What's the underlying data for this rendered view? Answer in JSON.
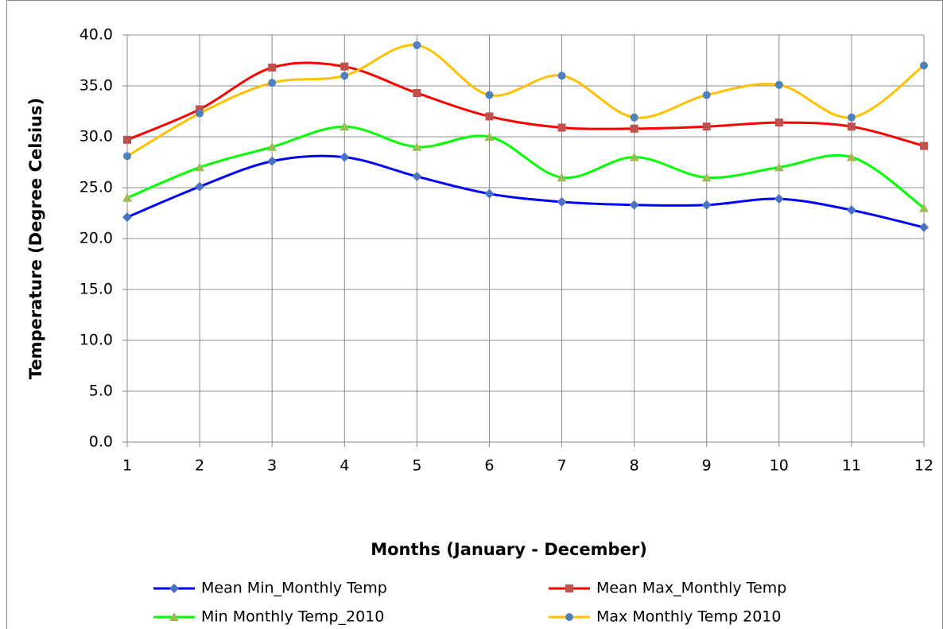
{
  "chart_data": {
    "type": "line",
    "smooth": true,
    "grid": true,
    "legend": "bottom",
    "x_label": "Months (January - December)",
    "y_label": "Temperature (Degree Celsius)",
    "x": [
      1,
      2,
      3,
      4,
      5,
      6,
      7,
      8,
      9,
      10,
      11,
      12
    ],
    "xlim": [
      1,
      12
    ],
    "xticks": [
      1,
      2,
      3,
      4,
      5,
      6,
      7,
      8,
      9,
      10,
      11,
      12
    ],
    "ylim": [
      0,
      40
    ],
    "yticks": [
      {
        "value": 0,
        "label": "0.0"
      },
      {
        "value": 5,
        "label": "5.0"
      },
      {
        "value": 10,
        "label": "10.0"
      },
      {
        "value": 15,
        "label": "15.0"
      },
      {
        "value": 20,
        "label": "20.0"
      },
      {
        "value": 25,
        "label": "25.0"
      },
      {
        "value": 30,
        "label": "30.0"
      },
      {
        "value": 35,
        "label": "35.0"
      },
      {
        "value": 40,
        "label": "40.0"
      }
    ],
    "series": [
      {
        "name": "Mean Min_Monthly Temp",
        "color": "#0000ff",
        "marker": "diamond",
        "marker_color": "#4a72c4",
        "values": [
          22.1,
          25.1,
          27.6,
          28.0,
          26.1,
          24.4,
          23.6,
          23.3,
          23.3,
          23.9,
          22.8,
          21.1
        ]
      },
      {
        "name": "Mean Max_Monthly Temp",
        "color": "#ff0000",
        "marker": "square",
        "marker_color": "#c0504d",
        "values": [
          29.7,
          32.7,
          36.8,
          36.9,
          34.3,
          32.0,
          30.9,
          30.8,
          31.0,
          31.4,
          31.0,
          29.1
        ]
      },
      {
        "name": "Min Monthly Temp_2010",
        "color": "#00ff00",
        "marker": "triangle",
        "marker_color": "#9bbb59",
        "values": [
          24,
          27,
          29,
          31,
          29,
          30,
          26,
          28,
          26,
          27,
          28,
          23
        ]
      },
      {
        "name": "Max Monthly Temp 2010",
        "color": "#ffc000",
        "marker": "circle",
        "marker_color": "#4f81bd",
        "values": [
          28.1,
          32.3,
          35.3,
          36.0,
          39.0,
          34.1,
          36.0,
          31.9,
          34.1,
          35.1,
          31.9,
          37.0
        ]
      }
    ]
  }
}
